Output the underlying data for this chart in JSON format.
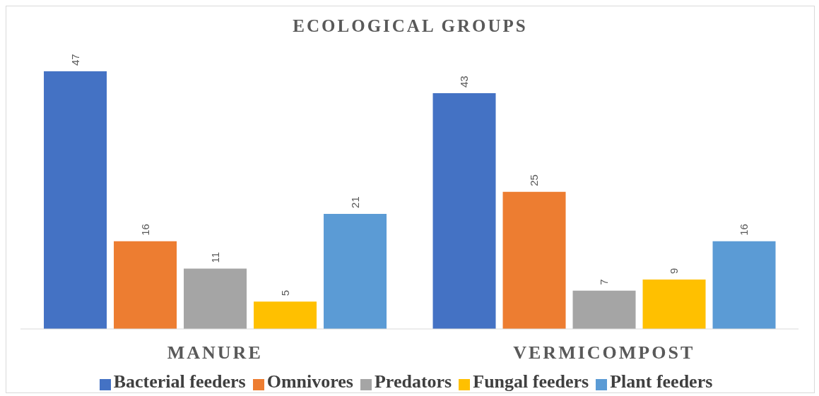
{
  "chart_data": {
    "type": "bar",
    "title": "ECOLOGICAL GROUPS",
    "categories": [
      "MANURE",
      "VERMICOMPOST"
    ],
    "series": [
      {
        "name": "Bacterial feeders",
        "color": "#4472c4",
        "values": [
          47,
          43
        ]
      },
      {
        "name": "Omnivores",
        "color": "#ed7d31",
        "values": [
          16,
          25
        ]
      },
      {
        "name": "Predators",
        "color": "#a5a5a5",
        "values": [
          11,
          7
        ]
      },
      {
        "name": "Fungal feeders",
        "color": "#ffc000",
        "values": [
          5,
          9
        ]
      },
      {
        "name": "Plant feeders",
        "color": "#5b9bd5",
        "values": [
          21,
          16
        ]
      }
    ],
    "data_labels": true,
    "legend": "bottom"
  }
}
